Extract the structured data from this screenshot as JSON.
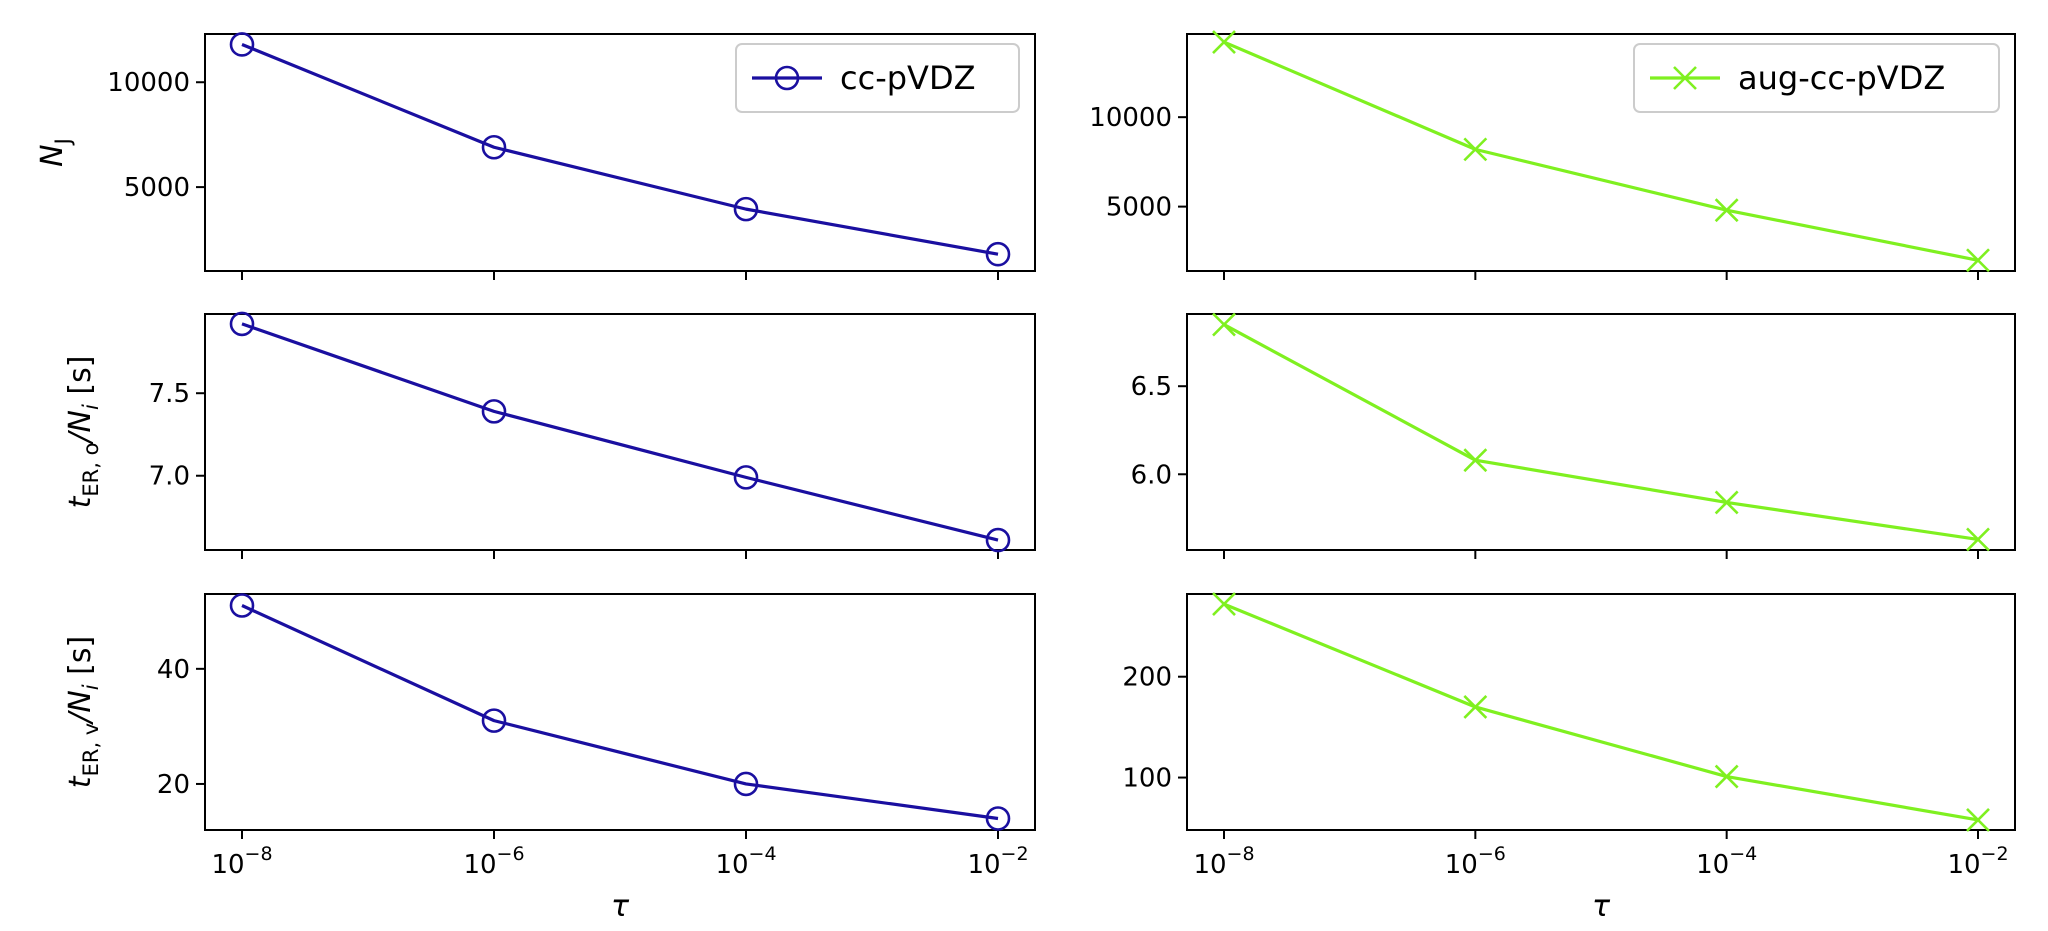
{
  "chart_data": {
    "type": "line",
    "xlabel": "τ",
    "x": [
      1e-08,
      1e-06,
      0.0001,
      0.01
    ],
    "x_tick_labels": [
      {
        "base": "10",
        "exp": "−8"
      },
      {
        "base": "10",
        "exp": "−6"
      },
      {
        "base": "10",
        "exp": "−4"
      },
      {
        "base": "10",
        "exp": "−2"
      }
    ],
    "xscale": "log",
    "columns": [
      {
        "legend": "cc-pVDZ",
        "color": "#1a0fa0",
        "marker": "circle"
      },
      {
        "legend": "aug-cc-pVDZ",
        "color": "#7ff020",
        "marker": "x"
      }
    ],
    "rows": [
      {
        "ylabel": {
          "main": "N",
          "sub": "J",
          "suffix": ""
        },
        "panels": [
          {
            "values": [
              11800,
              6900,
              3950,
              1800
            ],
            "ylim": [
              1000,
              12300
            ],
            "yticks": [
              5000,
              10000
            ],
            "ytick_labels": [
              "5000",
              "10000"
            ]
          },
          {
            "values": [
              14200,
              8200,
              4800,
              2000
            ],
            "ylim": [
              1400,
              14650
            ],
            "yticks": [
              5000,
              10000
            ],
            "ytick_labels": [
              "5000",
              "10000"
            ]
          }
        ]
      },
      {
        "ylabel": {
          "main": "t",
          "sub": "ER, o",
          "mid": "/N",
          "sub2": "i",
          "suffix": " [s]"
        },
        "panels": [
          {
            "values": [
              7.92,
              7.39,
              6.99,
              6.61
            ],
            "ylim": [
              6.55,
              7.98
            ],
            "yticks": [
              7.0,
              7.5
            ],
            "ytick_labels": [
              "7.0",
              "7.5"
            ]
          },
          {
            "values": [
              6.85,
              6.08,
              5.84,
              5.63
            ],
            "ylim": [
              5.57,
              6.91
            ],
            "yticks": [
              6.0,
              6.5
            ],
            "ytick_labels": [
              "6.0",
              "6.5"
            ]
          }
        ]
      },
      {
        "ylabel": {
          "main": "t",
          "sub": "ER, v",
          "mid": "/N",
          "sub2": "i",
          "suffix": " [s]"
        },
        "panels": [
          {
            "values": [
              51,
              31,
              20,
              14
            ],
            "ylim": [
              12,
              53
            ],
            "yticks": [
              20,
              40
            ],
            "ytick_labels": [
              "20",
              "40"
            ]
          },
          {
            "values": [
              272,
              170,
              101,
              58
            ],
            "ylim": [
              48,
              282
            ],
            "yticks": [
              100,
              200
            ],
            "ytick_labels": [
              "100",
              "200"
            ]
          }
        ]
      }
    ]
  }
}
